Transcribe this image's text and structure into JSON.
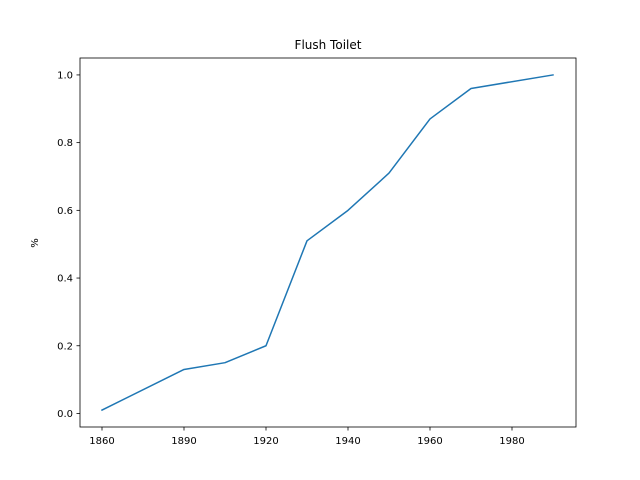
{
  "chart_data": {
    "type": "line",
    "title": "Flush Toilet",
    "xlabel": "",
    "ylabel": "%",
    "x_tick_labels": [
      "1860",
      "1890",
      "1920",
      "1940",
      "1960",
      "1980"
    ],
    "y_tick_values": [
      0.0,
      0.2,
      0.4,
      0.6,
      0.8,
      1.0
    ],
    "y_tick_labels": [
      "0.0",
      "0.2",
      "0.4",
      "0.6",
      "0.8",
      "1.0"
    ],
    "ylim": [
      -0.04,
      1.05
    ],
    "grid": false,
    "series": [
      {
        "color": "#1f77b4",
        "points": [
          {
            "x_label": "1860",
            "y": 0.01
          },
          {
            "x_label": "1890",
            "y": 0.13
          },
          {
            "x_label": "1900",
            "y": 0.15
          },
          {
            "x_label": "1920",
            "y": 0.2
          },
          {
            "x_label": "1930",
            "y": 0.51
          },
          {
            "x_label": "1940",
            "y": 0.6
          },
          {
            "x_label": "1950",
            "y": 0.71
          },
          {
            "x_label": "1960",
            "y": 0.87
          },
          {
            "x_label": "1970",
            "y": 0.96
          },
          {
            "x_label": "1990",
            "y": 1.0
          }
        ]
      }
    ]
  }
}
